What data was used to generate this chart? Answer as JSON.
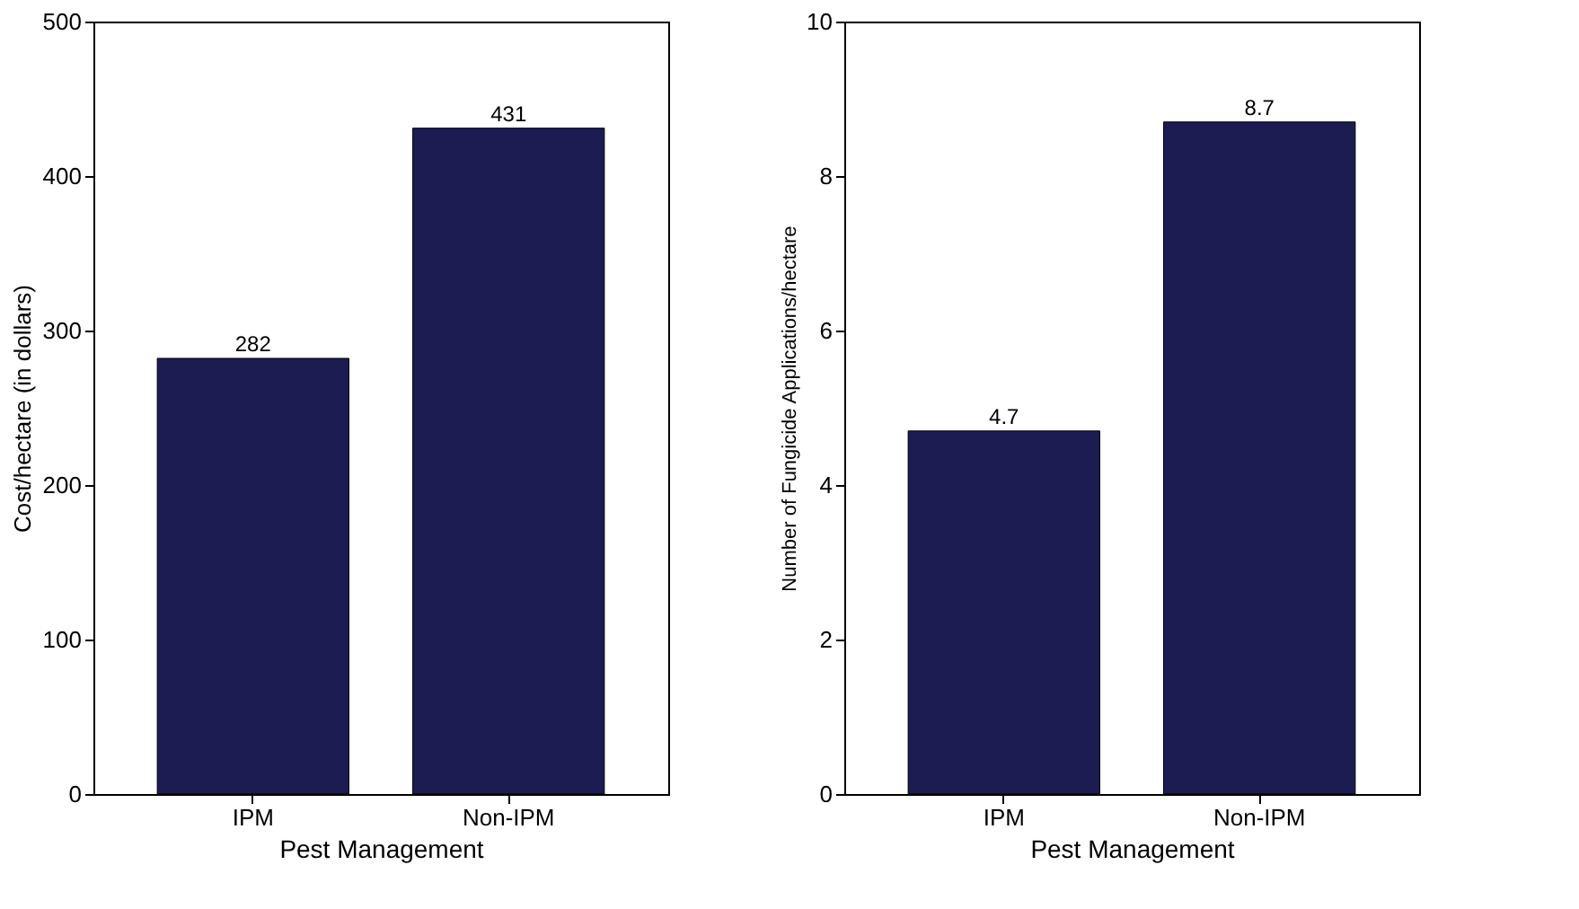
{
  "chart_data": [
    {
      "type": "bar",
      "categories": [
        "IPM",
        "Non-IPM"
      ],
      "values": [
        282,
        431
      ],
      "color": "#1c1c52",
      "xlabel": "Pest Management",
      "ylabel": "Cost/hectare (in dollars)",
      "ylim": [
        0,
        500
      ],
      "yticks": [
        0,
        100,
        200,
        300,
        400,
        500
      ],
      "data_labels": true,
      "grid": false
    },
    {
      "type": "bar",
      "categories": [
        "IPM",
        "Non-IPM"
      ],
      "values": [
        4.7,
        8.7
      ],
      "color": "#1c1c52",
      "xlabel": "Pest Management",
      "ylabel": "Number of Fungicide Applications/hectare",
      "ylim": [
        0,
        10
      ],
      "yticks": [
        0,
        2,
        4,
        6,
        8,
        10
      ],
      "data_labels": true,
      "grid": false
    }
  ]
}
